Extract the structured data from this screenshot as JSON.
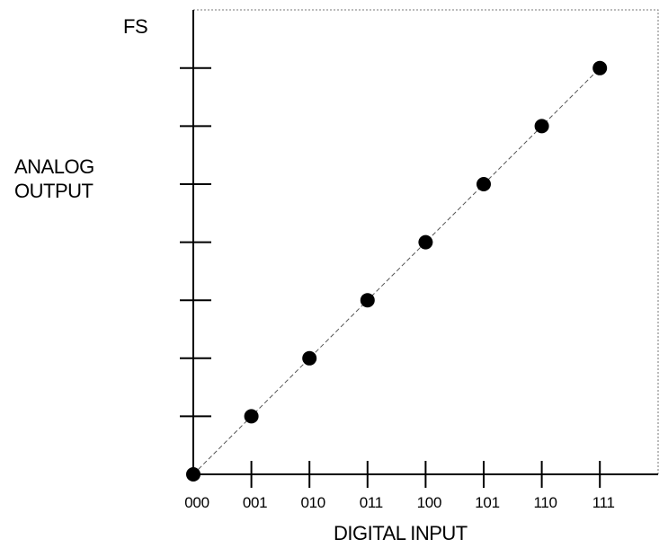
{
  "chart_data": {
    "type": "scatter",
    "top_label": "FS",
    "xlabel": "DIGITAL INPUT",
    "ylabel_lines": [
      "ANALOG",
      "OUTPUT"
    ],
    "categories": [
      "000",
      "001",
      "010",
      "011",
      "100",
      "101",
      "110",
      "111"
    ],
    "values": [
      0,
      1,
      2,
      3,
      4,
      5,
      6,
      7
    ],
    "ylim": [
      0,
      8
    ],
    "grid": false,
    "legend": "none",
    "line_through_points": "dashed",
    "colors": {
      "axis": "#000000",
      "points": "#000000",
      "frame": "#777777"
    }
  }
}
